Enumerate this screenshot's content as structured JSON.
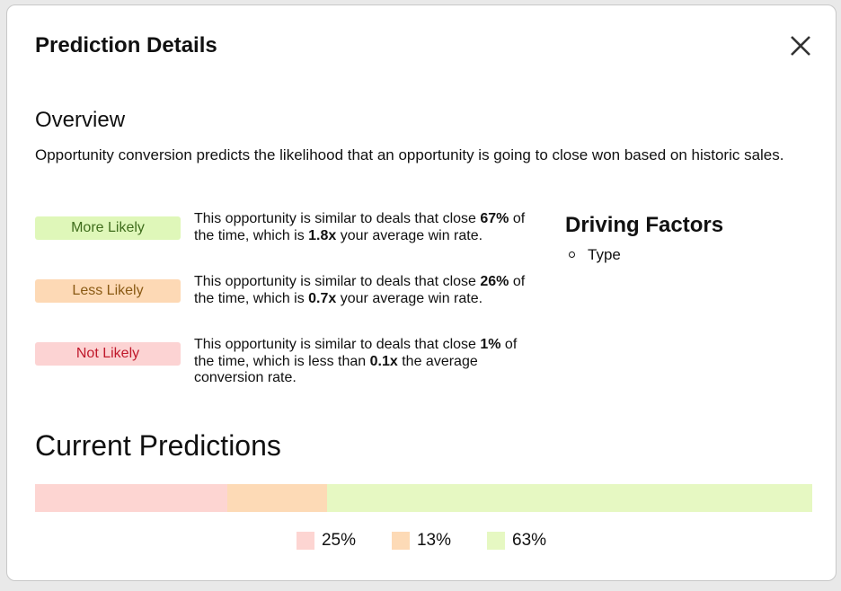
{
  "dialog": {
    "title": "Prediction Details",
    "overview": {
      "heading": "Overview",
      "text": "Opportunity conversion predicts the likelihood that an opportunity is going to close won based on historic sales.",
      "levels": [
        {
          "badge": "More Likely",
          "badge_color": "#dff7b9",
          "text_color": "#3f6d1c",
          "description": [
            {
              "text": "This opportunity is similar to deals that close "
            },
            {
              "text": "67%",
              "bold": true
            },
            {
              "text": " of the time, which is "
            },
            {
              "text": "1.8x",
              "bold": true
            },
            {
              "text": " your average win rate."
            }
          ]
        },
        {
          "badge": "Less Likely",
          "badge_color": "#fdd9b5",
          "text_color": "#8a5a14",
          "description": [
            {
              "text": "This opportunity is similar to deals that close "
            },
            {
              "text": "26%",
              "bold": true
            },
            {
              "text": " of the time, which is "
            },
            {
              "text": "0.7x",
              "bold": true
            },
            {
              "text": " your average win rate."
            }
          ]
        },
        {
          "badge": "Not Likely",
          "badge_color": "#fcd3d3",
          "text_color": "#c0192b",
          "description": [
            {
              "text": "This opportunity is similar to deals that close "
            },
            {
              "text": "1%",
              "bold": true
            },
            {
              "text": " of the time, which is less than "
            },
            {
              "text": "0.1x",
              "bold": true
            },
            {
              "text": " the average conversion rate."
            }
          ]
        }
      ]
    },
    "driving_factors": {
      "heading": "Driving Factors",
      "items": [
        "Type"
      ]
    },
    "current_predictions": {
      "heading": "Current Predictions",
      "values": [
        25,
        13,
        63
      ],
      "value_labels": [
        "25%",
        "13%",
        "63%"
      ],
      "colors": [
        "#fdd5d2",
        "#fddab6",
        "#e6f8c2"
      ]
    }
  }
}
